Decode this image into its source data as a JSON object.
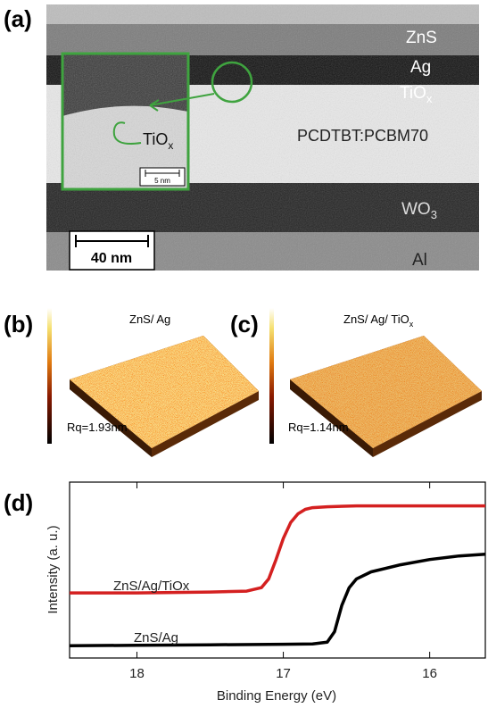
{
  "panel_a": {
    "label": "(a)",
    "layers": [
      "ZnS",
      "Ag",
      {
        "text": "TiO",
        "sub": "x"
      },
      "PCDTBT:PCBM70",
      {
        "text": "WO",
        "sub": "3"
      },
      "Al"
    ],
    "inset_label": {
      "text": "TiO",
      "sub": "x"
    },
    "inset_scale": "5 nm",
    "scale_bar": "40 nm"
  },
  "panel_b": {
    "label": "(b)",
    "title": "ZnS/ Ag",
    "roughness": "Rq=1.93nm"
  },
  "panel_c": {
    "label": "(c)",
    "title": {
      "text": "ZnS/ Ag/ TiO",
      "sub": "x"
    },
    "roughness": "Rq=1.14nm"
  },
  "chart_data": {
    "type": "line",
    "label": "(d)",
    "xlabel": "Binding Energy (eV)",
    "ylabel": "Intensity (a. u.)",
    "xlim": [
      18.46,
      15.62
    ],
    "xticks": [
      18,
      17,
      16
    ],
    "ylim": [
      0,
      1
    ],
    "series": [
      {
        "name": "ZnS/Ag/TiOx",
        "color": "#d42020",
        "x": [
          18.46,
          18,
          17.5,
          17.25,
          17.15,
          17.1,
          17.05,
          17.0,
          16.95,
          16.9,
          16.85,
          16.8,
          16.7,
          16.5,
          16.0,
          15.62
        ],
        "values": [
          0.37,
          0.37,
          0.375,
          0.38,
          0.4,
          0.45,
          0.56,
          0.68,
          0.77,
          0.82,
          0.845,
          0.855,
          0.86,
          0.865,
          0.865,
          0.865
        ]
      },
      {
        "name": "ZnS/Ag",
        "color": "#000000",
        "x": [
          18.46,
          18,
          17.5,
          17,
          16.8,
          16.7,
          16.65,
          16.6,
          16.55,
          16.5,
          16.4,
          16.2,
          16.0,
          15.8,
          15.62
        ],
        "values": [
          0.07,
          0.072,
          0.075,
          0.078,
          0.08,
          0.09,
          0.15,
          0.3,
          0.4,
          0.45,
          0.49,
          0.53,
          0.56,
          0.58,
          0.59
        ]
      }
    ]
  }
}
